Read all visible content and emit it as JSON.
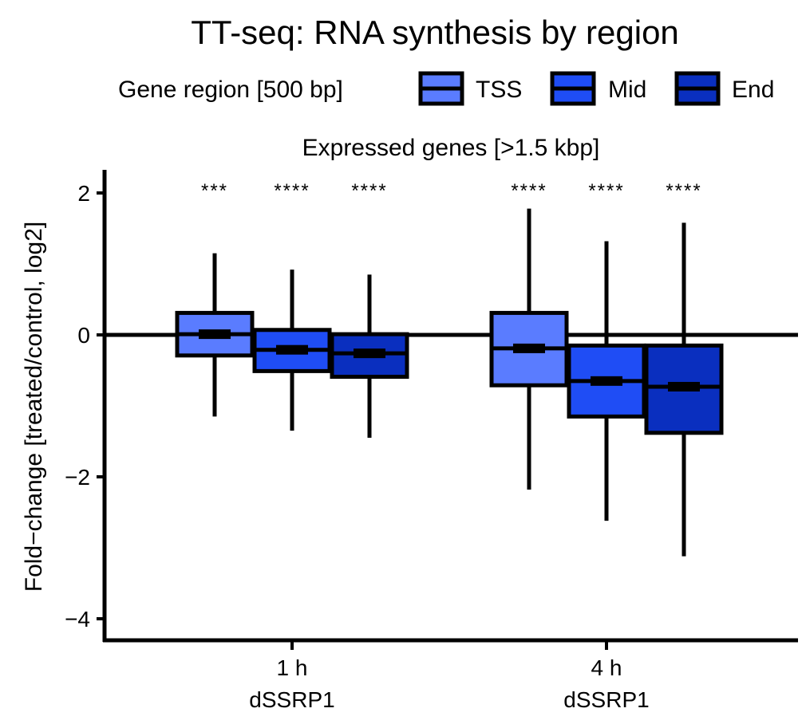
{
  "chart_data": {
    "type": "boxplot",
    "title": "TT-seq: RNA synthesis by region",
    "facet_label": "Expressed genes [>1.5 kbp]",
    "ylabel": "Fold−change [treated/control, log2]",
    "xlabel": "",
    "ylim": [
      -4.3,
      2.4
    ],
    "yticks": [
      2,
      0,
      -2,
      -4
    ],
    "ytick_labels": [
      "2",
      "0",
      "−2",
      "−4"
    ],
    "reference_line": 0,
    "legend": {
      "title": "Gene region [500 bp]",
      "position": "top",
      "entries": [
        "TSS",
        "Mid",
        "End"
      ]
    },
    "categories": [
      {
        "line1": "1 h",
        "line2": "dSSRP1"
      },
      {
        "line1": "4 h",
        "line2": "dSSRP1"
      }
    ],
    "series": [
      {
        "name": "TSS",
        "color": "#5a7cff",
        "boxes": [
          {
            "whisker_low": -1.15,
            "q1": -0.29,
            "median": 0.01,
            "q3": 0.31,
            "whisker_high": 1.15,
            "significance": "***"
          },
          {
            "whisker_low": -2.18,
            "q1": -0.71,
            "median": -0.19,
            "q3": 0.31,
            "whisker_high": 1.78,
            "significance": "****"
          }
        ]
      },
      {
        "name": "Mid",
        "color": "#1f4df5",
        "boxes": [
          {
            "whisker_low": -1.35,
            "q1": -0.51,
            "median": -0.21,
            "q3": 0.07,
            "whisker_high": 0.92,
            "significance": "****"
          },
          {
            "whisker_low": -2.62,
            "q1": -1.15,
            "median": -0.65,
            "q3": -0.15,
            "whisker_high": 1.32,
            "significance": "****"
          }
        ]
      },
      {
        "name": "End",
        "color": "#0a2fbf",
        "boxes": [
          {
            "whisker_low": -1.45,
            "q1": -0.59,
            "median": -0.26,
            "q3": 0.01,
            "whisker_high": 0.85,
            "significance": "****"
          },
          {
            "whisker_low": -3.12,
            "q1": -1.38,
            "median": -0.73,
            "q3": -0.15,
            "whisker_high": 1.58,
            "significance": "****"
          }
        ]
      }
    ]
  }
}
